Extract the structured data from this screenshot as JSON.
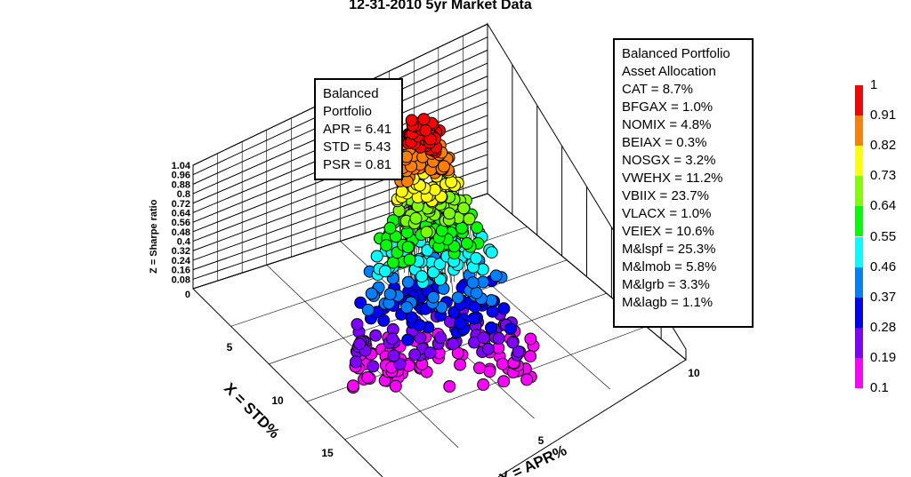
{
  "chart_data": {
    "type": "scatter3d",
    "title": "12-31-2010 5yr Market Data",
    "zlabel": "Z = Sharpe ratio",
    "xlabel": "X = STD%",
    "ylabel": "Y = APR%",
    "z_ticks": [
      "1.04",
      "0.96",
      "0.88",
      "0.8",
      "0.72",
      "0.64",
      "0.56",
      "0.48",
      "0.4",
      "0.32",
      "0.24",
      "0.16",
      "0.08",
      "0"
    ],
    "x_ticks": [
      "5",
      "10",
      "15"
    ],
    "y_ticks": [
      "10",
      "5"
    ],
    "colorbar": {
      "labels": [
        "1",
        "0.91",
        "0.82",
        "0.73",
        "0.64",
        "0.55",
        "0.46",
        "0.37",
        "0.28",
        "0.19",
        "0.1"
      ],
      "colors": [
        "#ff0000",
        "#ff7f00",
        "#ffff00",
        "#7fff00",
        "#00ff00",
        "#00ffff",
        "#007fff",
        "#0000ff",
        "#7f00ff",
        "#ff00ff"
      ]
    },
    "annotation_balanced": {
      "lines": [
        "Balanced",
        "Portfolio",
        "APR = 6.41",
        "STD = 5.43",
        "PSR = 0.81"
      ]
    },
    "annotation_allocation": {
      "lines": [
        "Balanced Portfolio",
        "Asset Allocation",
        "CAT = 8.7%",
        "BFGAX = 1.0%",
        "NOMIX = 4.8%",
        "BEIAX = 0.3%",
        "NOSGX = 3.2%",
        "VWEHX = 11.2%",
        "VBIIX = 23.7%",
        "VLACX = 1.0%",
        "VEIEX = 10.6%",
        "M&lspf = 25.3%",
        "M&lmob = 5.8%",
        "M&lgrb = 3.3%",
        "M&lagb = 1.1%"
      ]
    }
  }
}
